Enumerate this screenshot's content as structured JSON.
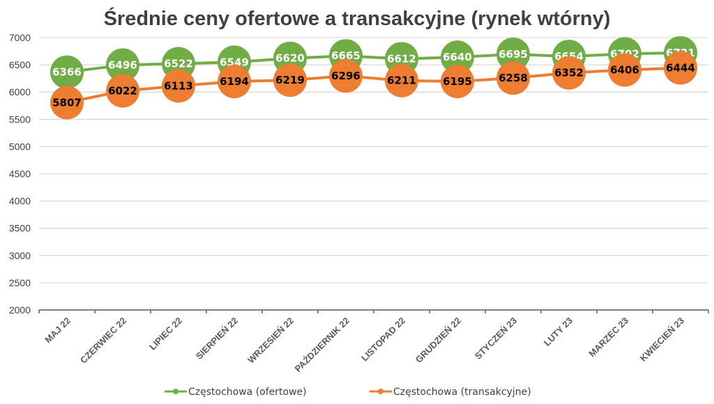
{
  "chart_data": {
    "type": "line",
    "title": "Średnie ceny ofertowe a transakcyjne (rynek wtórny)",
    "xlabel": "",
    "ylabel": "",
    "ylim": [
      2000,
      7000
    ],
    "yticks": [
      2000,
      2500,
      3000,
      3500,
      4000,
      4500,
      5000,
      5500,
      6000,
      6500,
      7000
    ],
    "grid": true,
    "legend_position": "bottom",
    "categories": [
      "MAJ 22",
      "CZERWIEC 22",
      "LIPIEC 22",
      "SIERPIEŃ 22",
      "WRZESIEŃ 22",
      "PAŹDZIERNIK 22",
      "LISTOPAD 22",
      "GRUDZIEŃ 22",
      "STYCZEŃ 23",
      "LUTY 23",
      "MARZEC 23",
      "KWIECIEŃ 23"
    ],
    "series": [
      {
        "name": "Częstochowa (ofertowe)",
        "color": "#70AD47",
        "label_color": "#FFFFFF",
        "values": [
          6366,
          6496,
          6522,
          6549,
          6620,
          6665,
          6612,
          6640,
          6695,
          6654,
          6702,
          6721
        ]
      },
      {
        "name": "Częstochowa (transakcyjne)",
        "color": "#ED7D31",
        "label_color": "#000000",
        "values": [
          5807,
          6022,
          6113,
          6194,
          6219,
          6296,
          6211,
          6195,
          6258,
          6352,
          6406,
          6444
        ]
      }
    ]
  }
}
